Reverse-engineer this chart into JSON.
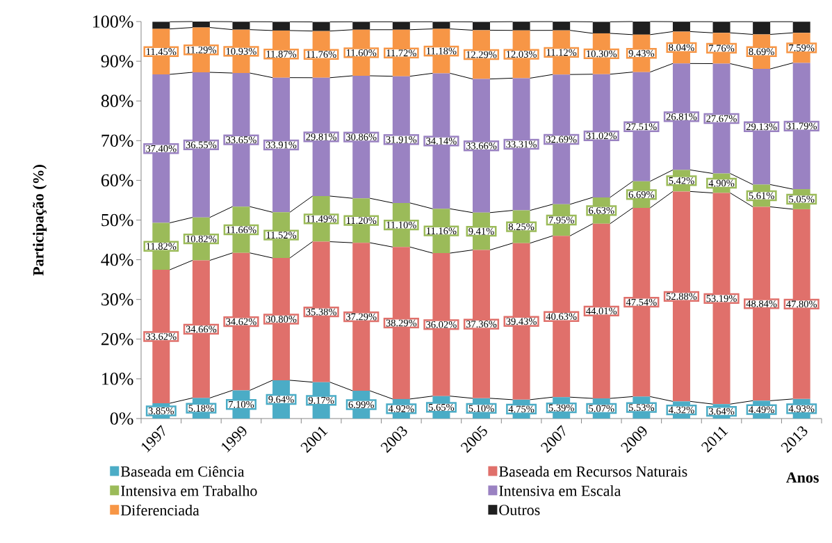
{
  "chart_data": {
    "type": "bar",
    "stacked": true,
    "ylabel": "Participação (%)",
    "xlabel": "Anos",
    "categories": [
      "1997",
      null,
      "1999",
      null,
      "2001",
      null,
      "2003",
      null,
      "2005",
      null,
      "2007",
      null,
      "2009",
      null,
      "2011",
      null,
      "2013"
    ],
    "ylim": [
      0,
      100
    ],
    "yticks": [
      {
        "value": 0,
        "label": "0%"
      },
      {
        "value": 10,
        "label": "10%"
      },
      {
        "value": 20,
        "label": "20%"
      },
      {
        "value": 30,
        "label": "30%"
      },
      {
        "value": 40,
        "label": "40%"
      },
      {
        "value": 50,
        "label": "50%"
      },
      {
        "value": 60,
        "label": "60%"
      },
      {
        "value": 70,
        "label": "70%"
      },
      {
        "value": 80,
        "label": "80%"
      },
      {
        "value": 90,
        "label": "90%"
      },
      {
        "value": 100,
        "label": "100%"
      }
    ],
    "legend": "bottom",
    "series": [
      {
        "name": "Baseada em Ciência",
        "color": "#4bacc6",
        "values": [
          3.85,
          5.18,
          7.1,
          9.64,
          9.17,
          6.99,
          4.92,
          5.65,
          5.1,
          4.75,
          5.39,
          5.07,
          5.53,
          4.32,
          3.64,
          4.49,
          4.93
        ],
        "value_labels": [
          "3.85%",
          "5.18%",
          "7.10%",
          "9.64%",
          "9.17%",
          "6.99%",
          "4.92%",
          "5.65%",
          "5.10%",
          "4.75%",
          "5.39%",
          "5.07%",
          "5.53%",
          "4.32%",
          "3.64%",
          "4.49%",
          "4.93%"
        ]
      },
      {
        "name": "Baseada em Recursos Naturais",
        "color": "#e0706b",
        "values": [
          33.62,
          34.66,
          34.62,
          30.8,
          35.38,
          37.29,
          38.29,
          36.02,
          37.36,
          39.43,
          40.63,
          44.01,
          47.54,
          52.88,
          53.19,
          48.84,
          47.8
        ],
        "value_labels": [
          "33.62%",
          "34.66%",
          "34.62%",
          "30.80%",
          "35.38%",
          "37.29%",
          "38.29%",
          "36.02%",
          "37.36%",
          "39.43%",
          "40.63%",
          "44.01%",
          "47.54%",
          "52.88%",
          "53.19%",
          "48.84%",
          "47.80%"
        ]
      },
      {
        "name": "Intensiva em Trabalho",
        "color": "#9bbb59",
        "values": [
          11.82,
          10.82,
          11.66,
          11.52,
          11.49,
          11.2,
          11.1,
          11.16,
          9.41,
          8.25,
          7.95,
          6.63,
          6.69,
          5.42,
          4.9,
          5.61,
          5.05
        ],
        "value_labels": [
          "11.82%",
          "10.82%",
          "11.66%",
          "11.52%",
          "11.49%",
          "11.20%",
          "11.10%",
          "11.16%",
          "9.41%",
          "8.25%",
          "7.95%",
          "6.63%",
          "6.69%",
          "5.42%",
          "4.90%",
          "5.61%",
          "5.05%"
        ]
      },
      {
        "name": "Intensiva em Escala",
        "color": "#9a82c2",
        "values": [
          37.4,
          36.55,
          33.65,
          33.91,
          29.81,
          30.86,
          31.91,
          34.14,
          33.66,
          33.31,
          32.69,
          31.02,
          27.51,
          26.81,
          27.67,
          29.13,
          31.79
        ],
        "value_labels": [
          "37.40%",
          "36.55%",
          "33.65%",
          "33.91%",
          "29.81%",
          "30.86%",
          "31.91%",
          "34.14%",
          "33.66%",
          "33.31%",
          "32.69%",
          "31.02%",
          "27.51%",
          "26.81%",
          "27.67%",
          "29.13%",
          "31.79%"
        ]
      },
      {
        "name": "Diferenciada",
        "color": "#f79646",
        "values": [
          11.45,
          11.29,
          10.93,
          11.87,
          11.76,
          11.6,
          11.72,
          11.18,
          12.29,
          12.03,
          11.12,
          10.3,
          9.43,
          8.04,
          7.76,
          8.69,
          7.59
        ],
        "value_labels": [
          "11.45%",
          "11.29%",
          "10.93%",
          "11.87%",
          "11.76%",
          "11.60%",
          "11.72%",
          "11.18%",
          "12.29%",
          "12.03%",
          "11.12%",
          "10.30%",
          "9.43%",
          "8.04%",
          "7.76%",
          "8.69%",
          "7.59%"
        ]
      },
      {
        "name": "Outros",
        "color": "#1f1f1f",
        "values": [
          1.8,
          1.5,
          2.0,
          2.2,
          2.3,
          2.0,
          2.0,
          1.8,
          2.1,
          2.2,
          2.2,
          2.9,
          3.3,
          2.5,
          2.8,
          3.2,
          2.8
        ]
      }
    ]
  }
}
